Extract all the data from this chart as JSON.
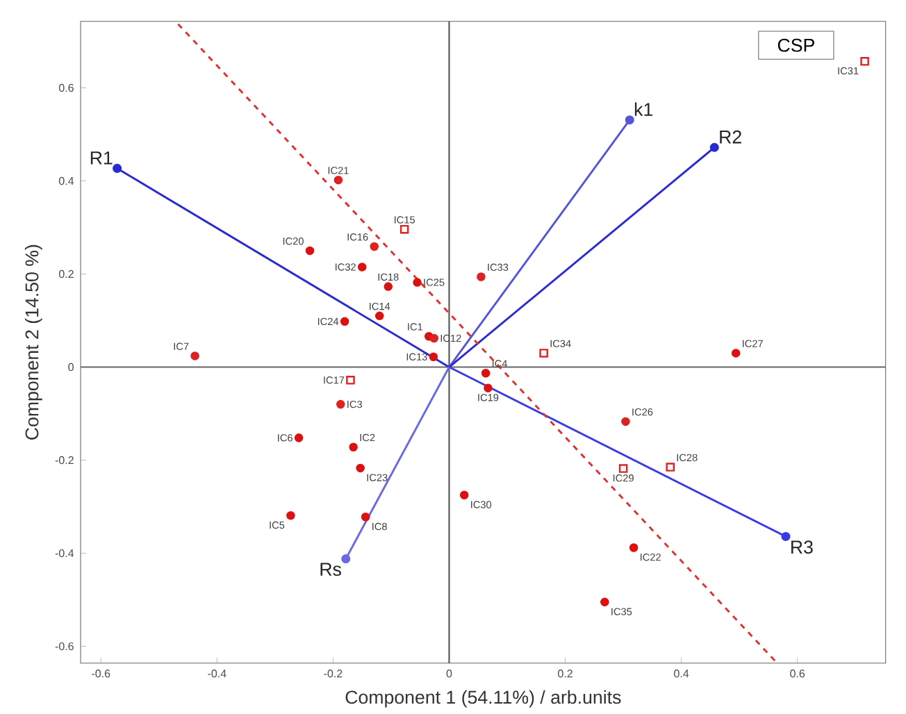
{
  "chart_data": {
    "type": "scatter",
    "title": "CSP",
    "xlabel": "Component 1 (54.11%) / arb.units",
    "ylabel": "Component 2 (14.50 %)",
    "xlim": [
      -0.635,
      0.752
    ],
    "ylim": [
      -0.636,
      0.743
    ],
    "xticks": [
      -0.6,
      -0.4,
      -0.2,
      0,
      0.2,
      0.4,
      0.6
    ],
    "yticks": [
      -0.6,
      -0.4,
      -0.2,
      0,
      0.2,
      0.4,
      0.6
    ],
    "grid": false,
    "ref_lines": [
      {
        "axis": "x",
        "value": 0,
        "color": "#555555"
      },
      {
        "axis": "y",
        "value": 0,
        "color": "#666666"
      }
    ],
    "series": [
      {
        "marker": "circle",
        "color": "#dd1111",
        "x": [
          -0.24,
          -0.15,
          -0.105,
          -0.055,
          -0.12,
          -0.18,
          -0.035,
          -0.027,
          0.063,
          0.067,
          0.494,
          0.026,
          0.318,
          0.268,
          -0.259,
          -0.165,
          -0.153,
          -0.273,
          -0.144
        ],
        "values": [
          0.25,
          0.215,
          0.173,
          0.182,
          0.11,
          0.098,
          0.066,
          0.022,
          -0.013,
          -0.045,
          0.03,
          -0.275,
          -0.388,
          -0.505,
          -0.152,
          -0.172,
          -0.217,
          -0.319,
          -0.322
        ]
      },
      {
        "marker": "circle",
        "color": "#dd2222",
        "x": [
          -0.191,
          -0.129,
          -0.026,
          -0.438,
          -0.187,
          0.055,
          0.304
        ],
        "values": [
          0.402,
          0.259,
          0.062,
          0.024,
          -0.08,
          0.194,
          -0.117
        ]
      },
      {
        "marker": "square",
        "color": "#dd2222",
        "x": [
          -0.077,
          -0.17,
          0.163,
          0.3,
          0.381,
          0.716
        ],
        "values": [
          0.296,
          -0.028,
          0.03,
          -0.218,
          -0.215,
          0.657
        ]
      },
      {
        "type": "line",
        "name": "R1",
        "marker": "circle",
        "color": "#2a2ad0",
        "x": [
          0,
          -0.572
        ],
        "values": [
          0,
          0.427
        ]
      },
      {
        "type": "line",
        "name": "k1",
        "marker": "circle",
        "color": "#5555d8",
        "x": [
          0,
          0.311
        ],
        "values": [
          0,
          0.531
        ]
      },
      {
        "type": "line",
        "name": "R2",
        "marker": "circle",
        "color": "#2a2ad0",
        "x": [
          0,
          0.457
        ],
        "values": [
          0,
          0.472
        ]
      },
      {
        "type": "line",
        "name": "R3",
        "marker": "circle",
        "color": "#3b3be6",
        "x": [
          0,
          0.58
        ],
        "values": [
          0,
          -0.364
        ]
      },
      {
        "type": "line",
        "name": "Rs",
        "marker": "circle",
        "color": "#6a6ae0",
        "x": [
          0,
          -0.178
        ],
        "values": [
          0,
          -0.412
        ]
      },
      {
        "type": "line",
        "line_style": "dashed",
        "color": "#e03030",
        "x": [
          -0.467,
          0.565
        ],
        "values": [
          0.737,
          -0.636
        ]
      }
    ],
    "annotations": [
      {
        "text": "IC20",
        "x": -0.24,
        "y": 0.25
      },
      {
        "text": "IC32",
        "x": -0.15,
        "y": 0.215
      },
      {
        "text": "IC18",
        "x": -0.105,
        "y": 0.173
      },
      {
        "text": "IC25",
        "x": -0.055,
        "y": 0.182
      },
      {
        "text": "IC14",
        "x": -0.12,
        "y": 0.11
      },
      {
        "text": "IC24",
        "x": -0.18,
        "y": 0.098
      },
      {
        "text": "IC1",
        "x": -0.035,
        "y": 0.066
      },
      {
        "text": "IC13",
        "x": -0.027,
        "y": 0.022
      },
      {
        "text": "IC4",
        "x": 0.063,
        "y": -0.013
      },
      {
        "text": "IC19",
        "x": 0.067,
        "y": -0.045
      },
      {
        "text": "IC27",
        "x": 0.494,
        "y": 0.03
      },
      {
        "text": "IC30",
        "x": 0.026,
        "y": -0.275
      },
      {
        "text": "IC22",
        "x": 0.318,
        "y": -0.388
      },
      {
        "text": "IC35",
        "x": 0.268,
        "y": -0.505
      },
      {
        "text": "IC6",
        "x": -0.259,
        "y": -0.152
      },
      {
        "text": "IC2",
        "x": -0.165,
        "y": -0.172
      },
      {
        "text": "IC23",
        "x": -0.153,
        "y": -0.217
      },
      {
        "text": "IC5",
        "x": -0.273,
        "y": -0.319
      },
      {
        "text": "IC8",
        "x": -0.144,
        "y": -0.322
      },
      {
        "text": "IC21",
        "x": -0.191,
        "y": 0.402
      },
      {
        "text": "IC16",
        "x": -0.129,
        "y": 0.259
      },
      {
        "text": "IC12",
        "x": -0.026,
        "y": 0.062
      },
      {
        "text": "IC7",
        "x": -0.438,
        "y": 0.024
      },
      {
        "text": "IC3",
        "x": -0.187,
        "y": -0.08
      },
      {
        "text": "IC33",
        "x": 0.055,
        "y": 0.194
      },
      {
        "text": "IC26",
        "x": 0.304,
        "y": -0.117
      },
      {
        "text": "IC15",
        "x": -0.077,
        "y": 0.296
      },
      {
        "text": "IC17",
        "x": -0.17,
        "y": -0.028
      },
      {
        "text": "IC34",
        "x": 0.163,
        "y": 0.03
      },
      {
        "text": "IC29",
        "x": 0.3,
        "y": -0.218
      },
      {
        "text": "IC28",
        "x": 0.381,
        "y": -0.215
      },
      {
        "text": "IC31",
        "x": 0.716,
        "y": 0.657
      }
    ]
  }
}
